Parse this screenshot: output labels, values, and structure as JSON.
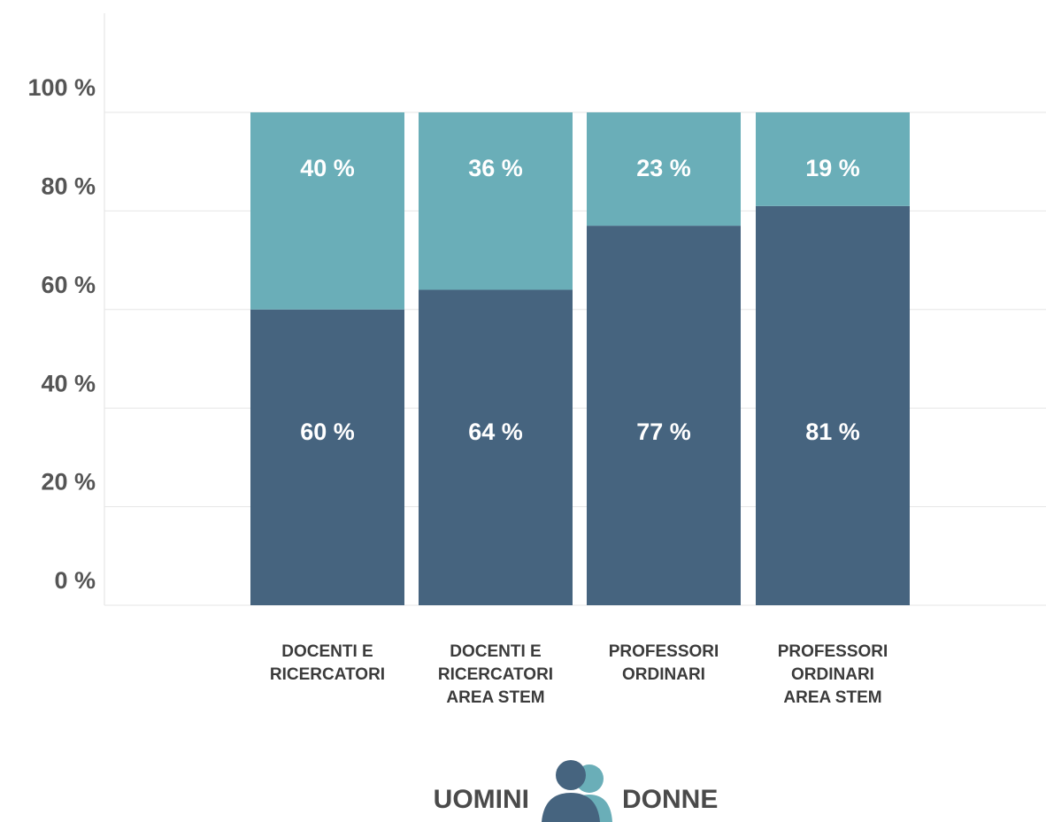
{
  "chart_data": {
    "type": "stacked_bar",
    "categories": [
      "DOCENTI E\nRICERCATORI",
      "DOCENTI E\nRICERCATORI\nAREA STEM",
      "PROFESSORI\nORDINARI",
      "PROFESSORI\nORDINARI\nAREA STEM"
    ],
    "series": [
      {
        "name": "UOMINI",
        "color": "#46647f",
        "values": [
          60,
          64,
          77,
          81
        ],
        "value_labels": [
          "60 %",
          "64 %",
          "77 %",
          "81 %"
        ]
      },
      {
        "name": "DONNE",
        "color": "#6aaeb8",
        "values": [
          40,
          36,
          23,
          19
        ],
        "value_labels": [
          "40 %",
          "36 %",
          "23 %",
          "19 %"
        ]
      }
    ],
    "ylim": [
      0,
      100
    ],
    "yticks": [
      {
        "value": 0,
        "label": "0 %"
      },
      {
        "value": 20,
        "label": "20 %"
      },
      {
        "value": 40,
        "label": "40 %"
      },
      {
        "value": 60,
        "label": "60 %"
      },
      {
        "value": 80,
        "label": "80 %"
      },
      {
        "value": 100,
        "label": "100 %"
      }
    ],
    "grid": true
  }
}
